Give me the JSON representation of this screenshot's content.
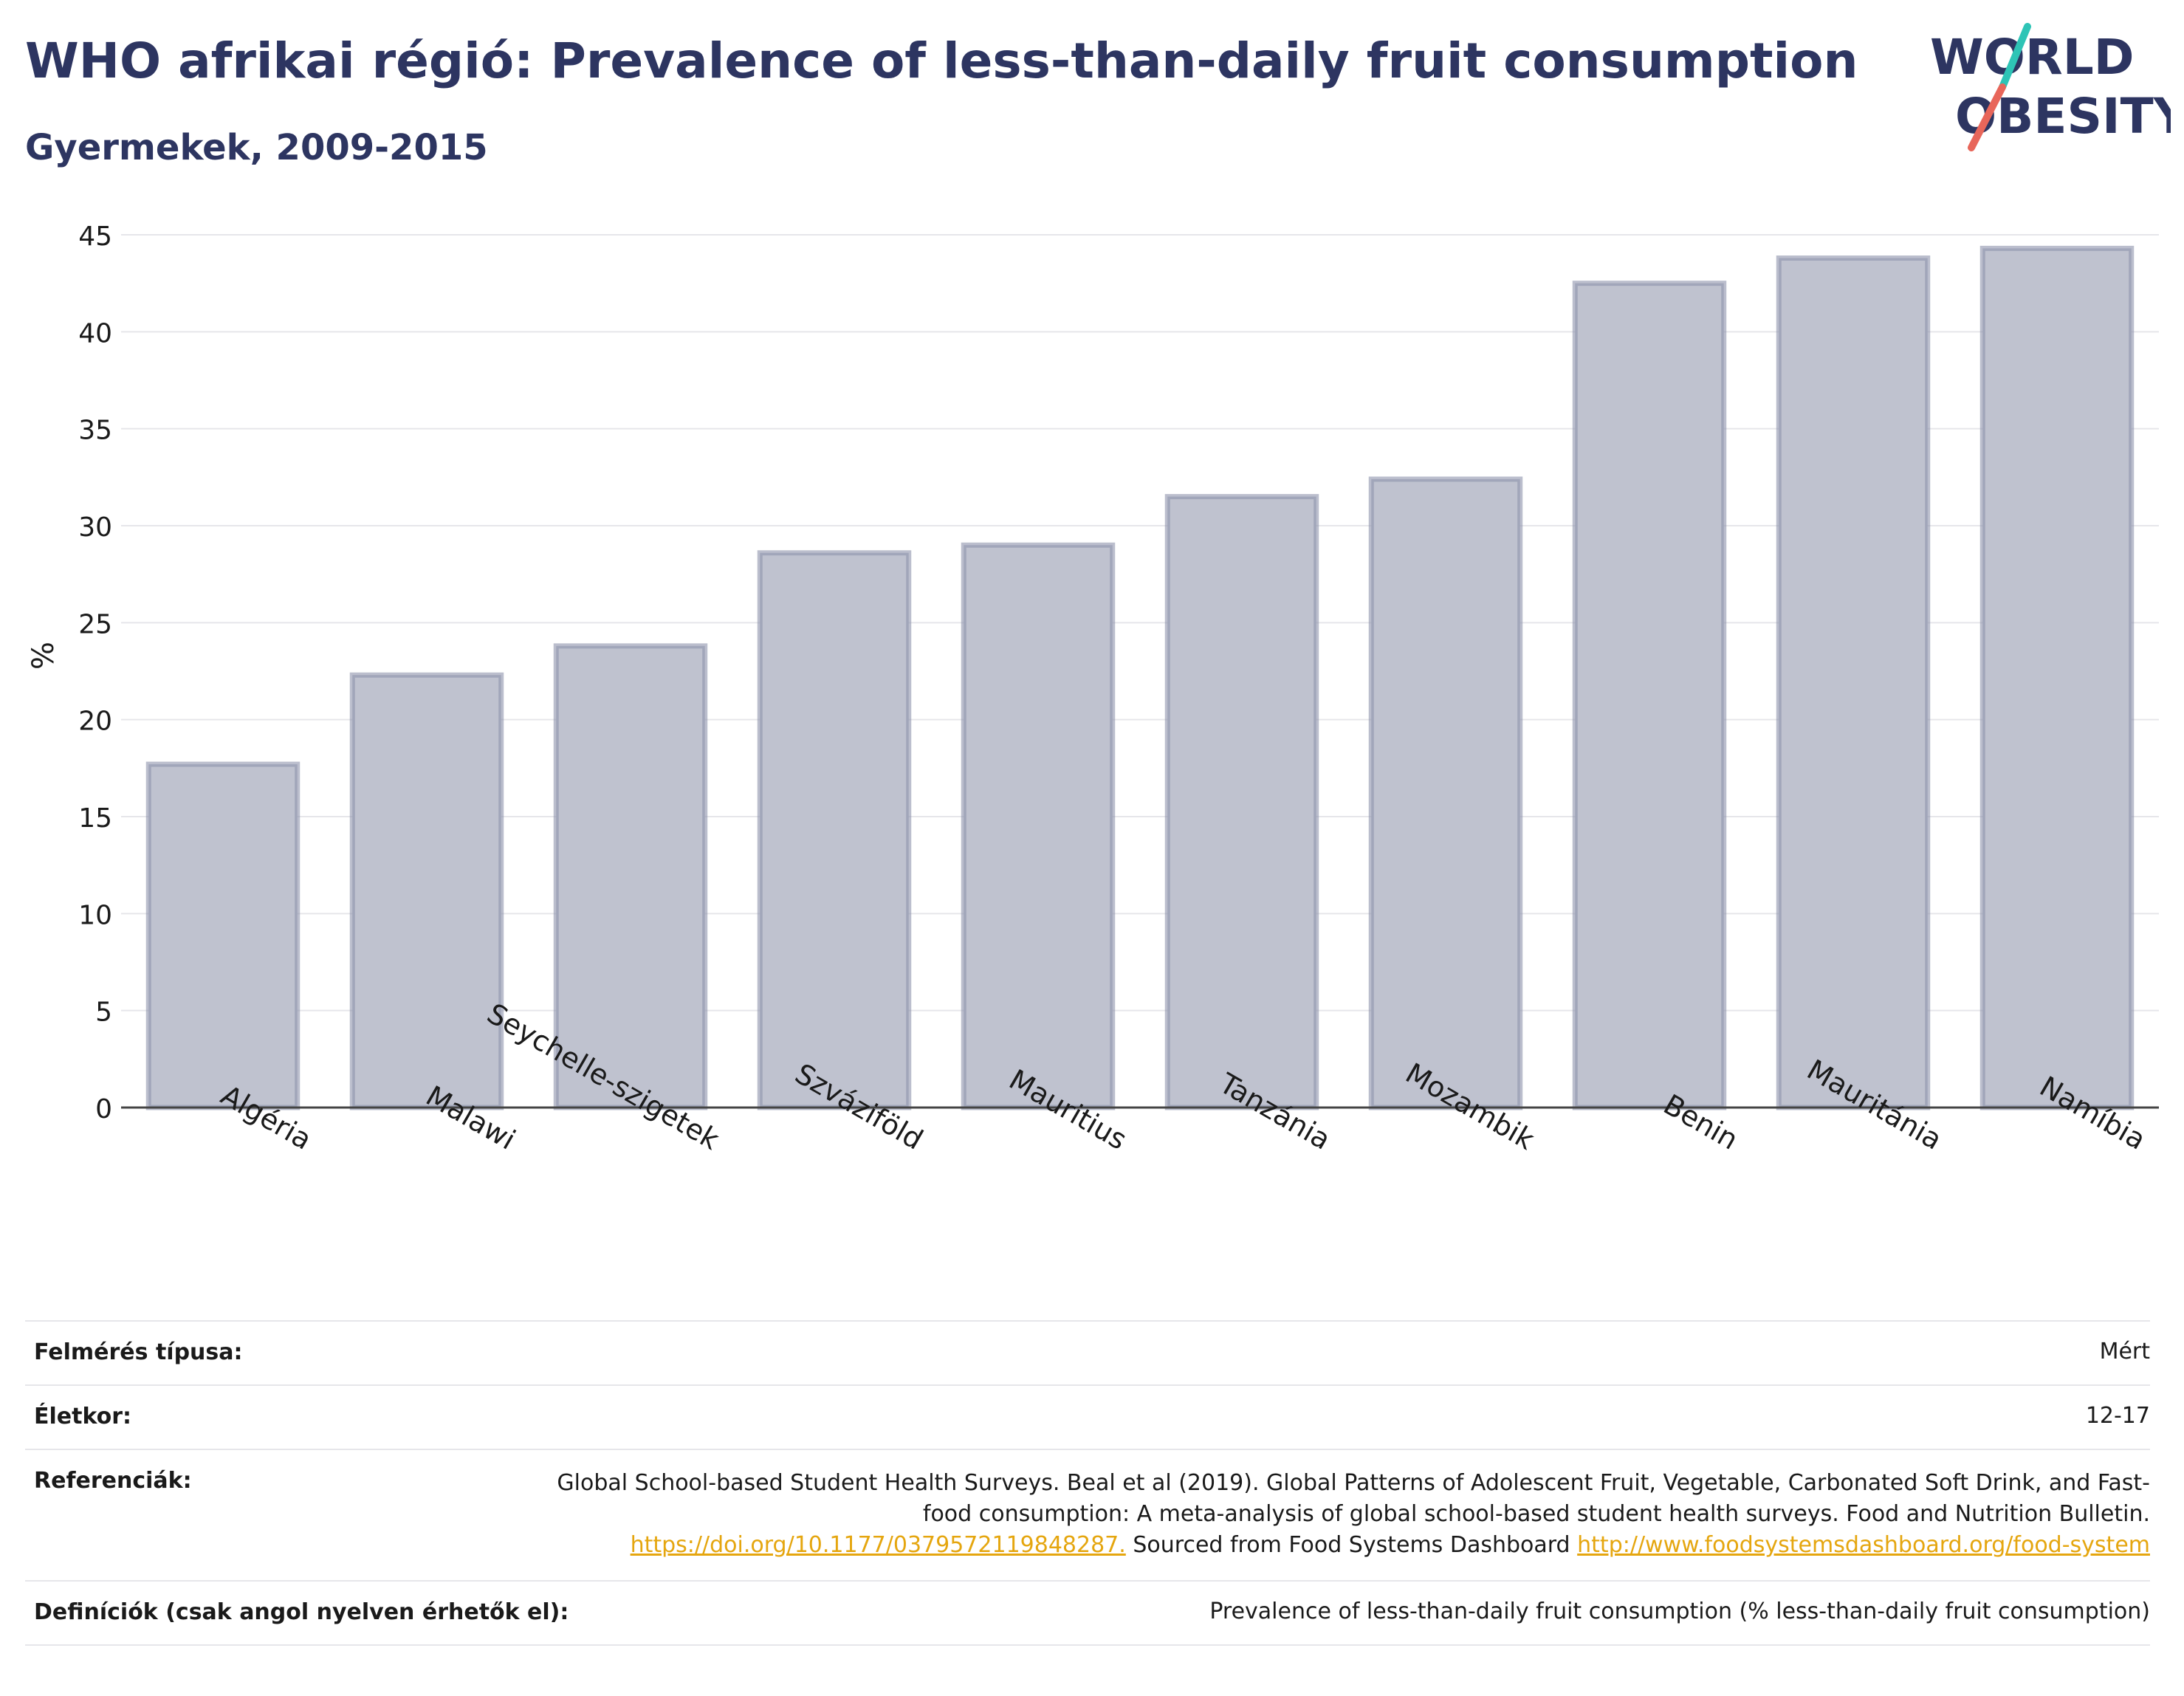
{
  "header": {
    "title": "WHO afrikai régió: Prevalence of less-than-daily fruit consumption",
    "subtitle": "Gyermekek, 2009-2015"
  },
  "logo": {
    "line1": "WORLD",
    "line2": "OBESITY",
    "colors": {
      "text": "#2d3561",
      "slash_top": "#2ec4b6",
      "slash_bottom": "#e8665a"
    }
  },
  "chart_data": {
    "type": "bar",
    "ylabel": "%",
    "xlabel": "",
    "ylim": [
      0,
      45
    ],
    "yticks": [
      0,
      5,
      10,
      15,
      20,
      25,
      30,
      35,
      40,
      45
    ],
    "grid": true,
    "categories": [
      "Algéria",
      "Malawi",
      "Seychelle-szigetek",
      "Szváziföld",
      "Mauritius",
      "Tanzánia",
      "Mozambik",
      "Benin",
      "Mauritánia",
      "Namíbia"
    ],
    "values": [
      17.7,
      22.3,
      23.8,
      28.6,
      29.0,
      31.5,
      32.4,
      42.5,
      43.8,
      44.3
    ],
    "colors": {
      "bar_fill": "#bfc2cf",
      "bar_stroke": "#8e93ac"
    }
  },
  "meta": {
    "survey_label": "Felmérés típusa:",
    "survey_value": "Mért",
    "age_label": "Életkor:",
    "age_value": "12-17",
    "ref_label": "Referenciák:",
    "ref_text1": "Global School-based Student Health Surveys. Beal et al (2019). Global Patterns of Adolescent Fruit, Vegetable, Carbonated Soft Drink, and Fast-food consumption: A meta-analysis of global school-based student health surveys. Food and Nutrition Bulletin.",
    "ref_link1": "https://doi.org/10.1177/0379572119848287.",
    "ref_text2": "Sourced from Food Systems Dashboard",
    "ref_link2": "http://www.foodsystemsdashboard.org/food-system",
    "def_label": "Definíciók (csak angol nyelven érhetők el):",
    "def_value": "Prevalence of less-than-daily fruit consumption (% less-than-daily fruit consumption)",
    "link_color": "#e5a60f"
  }
}
